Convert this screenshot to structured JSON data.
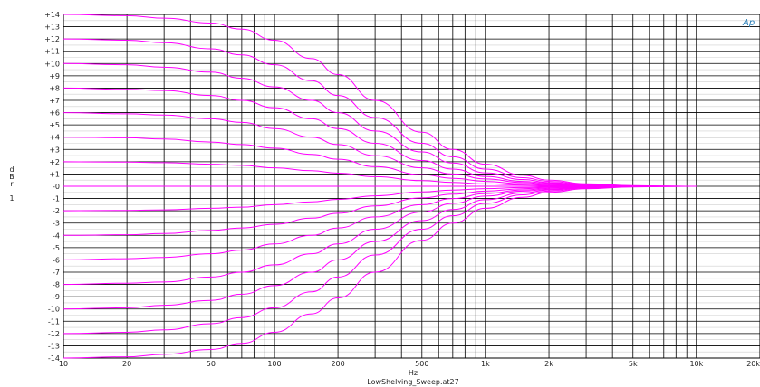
{
  "chart_data": {
    "type": "line",
    "title": "",
    "logo": "Ap",
    "xlabel": "Hz",
    "ylabel": "d\nB\nr\n\n1",
    "filename": "LowShelving_Sweep.at27",
    "x_scale": "log",
    "xlim": [
      10,
      20000
    ],
    "ylim": [
      -14,
      14
    ],
    "grid": true,
    "x_tick_labels": [
      {
        "x": 10,
        "label": "10"
      },
      {
        "x": 20,
        "label": "20"
      },
      {
        "x": 50,
        "label": "50"
      },
      {
        "x": 100,
        "label": "100"
      },
      {
        "x": 200,
        "label": "200"
      },
      {
        "x": 500,
        "label": "500"
      },
      {
        "x": 1000,
        "label": "1k"
      },
      {
        "x": 2000,
        "label": "2k"
      },
      {
        "x": 5000,
        "label": "5k"
      },
      {
        "x": 10000,
        "label": "10k"
      },
      {
        "x": 20000,
        "label": "20k"
      }
    ],
    "y_tick_labels": [
      {
        "y": 14,
        "label": "+14"
      },
      {
        "y": 13,
        "label": "+13"
      },
      {
        "y": 12,
        "label": "+12"
      },
      {
        "y": 11,
        "label": "+11"
      },
      {
        "y": 10,
        "label": "+10"
      },
      {
        "y": 9,
        "label": "+9"
      },
      {
        "y": 8,
        "label": "+8"
      },
      {
        "y": 7,
        "label": "+7"
      },
      {
        "y": 6,
        "label": "+6"
      },
      {
        "y": 5,
        "label": "+5"
      },
      {
        "y": 4,
        "label": "+4"
      },
      {
        "y": 3,
        "label": "+3"
      },
      {
        "y": 2,
        "label": "+2"
      },
      {
        "y": 1,
        "label": "+1"
      },
      {
        "y": 0,
        "label": "-0"
      },
      {
        "y": -1,
        "label": "-1"
      },
      {
        "y": -2,
        "label": "-2"
      },
      {
        "y": -3,
        "label": "-3"
      },
      {
        "y": -4,
        "label": "-4"
      },
      {
        "y": -5,
        "label": "-5"
      },
      {
        "y": -6,
        "label": "-6"
      },
      {
        "y": -7,
        "label": "-7"
      },
      {
        "y": -8,
        "label": "-8"
      },
      {
        "y": -9,
        "label": "-9"
      },
      {
        "y": -10,
        "label": "-10"
      },
      {
        "y": -11,
        "label": "-11"
      },
      {
        "y": -12,
        "label": "-12"
      },
      {
        "y": -13,
        "label": "-13"
      },
      {
        "y": -14,
        "label": "-14"
      }
    ],
    "series_color": "#ff00ff",
    "x": [
      10,
      20,
      30,
      50,
      70,
      100,
      150,
      200,
      300,
      500,
      700,
      1000,
      1500,
      2000,
      3000,
      5000,
      7000,
      10000
    ],
    "series": [
      {
        "values": [
          14,
          13.9,
          13.7,
          13.3,
          12.8,
          11.9,
          10.4,
          9.1,
          7.0,
          4.4,
          3.0,
          1.8,
          0.9,
          0.5,
          0.2,
          0.05,
          0.02,
          0
        ]
      },
      {
        "values": [
          12,
          11.9,
          11.7,
          11.2,
          10.7,
          9.9,
          8.6,
          7.4,
          5.6,
          3.5,
          2.4,
          1.4,
          0.7,
          0.4,
          0.15,
          0.04,
          0.01,
          0
        ]
      },
      {
        "values": [
          10,
          9.9,
          9.7,
          9.3,
          8.8,
          8.1,
          7.0,
          6.0,
          4.5,
          2.8,
          1.9,
          1.1,
          0.55,
          0.3,
          0.12,
          0.03,
          0.01,
          0
        ]
      },
      {
        "values": [
          8,
          7.9,
          7.8,
          7.4,
          7.0,
          6.4,
          5.5,
          4.7,
          3.5,
          2.1,
          1.4,
          0.8,
          0.4,
          0.25,
          0.1,
          0.02,
          0.01,
          0
        ]
      },
      {
        "values": [
          6,
          5.9,
          5.8,
          5.5,
          5.2,
          4.7,
          4.0,
          3.4,
          2.5,
          1.5,
          1.0,
          0.6,
          0.3,
          0.18,
          0.07,
          0.02,
          0,
          0
        ]
      },
      {
        "values": [
          4,
          3.95,
          3.85,
          3.6,
          3.4,
          3.1,
          2.6,
          2.2,
          1.6,
          0.95,
          0.65,
          0.4,
          0.2,
          0.12,
          0.05,
          0.01,
          0,
          0
        ]
      },
      {
        "values": [
          2,
          1.97,
          1.92,
          1.8,
          1.7,
          1.5,
          1.27,
          1.07,
          0.78,
          0.46,
          0.31,
          0.19,
          0.1,
          0.06,
          0.02,
          0.01,
          0,
          0
        ]
      },
      {
        "values": [
          0,
          0,
          0,
          0,
          0,
          0,
          0,
          0,
          0,
          0,
          0,
          0,
          0,
          0,
          0,
          0,
          0,
          0
        ]
      },
      {
        "values": [
          -2,
          -1.97,
          -1.92,
          -1.8,
          -1.7,
          -1.5,
          -1.27,
          -1.07,
          -0.78,
          -0.46,
          -0.31,
          -0.19,
          -0.1,
          -0.06,
          -0.02,
          -0.01,
          0,
          0
        ]
      },
      {
        "values": [
          -4,
          -3.95,
          -3.85,
          -3.6,
          -3.4,
          -3.1,
          -2.6,
          -2.2,
          -1.6,
          -0.95,
          -0.65,
          -0.4,
          -0.2,
          -0.12,
          -0.05,
          -0.01,
          0,
          0
        ]
      },
      {
        "values": [
          -6,
          -5.9,
          -5.8,
          -5.5,
          -5.2,
          -4.7,
          -4.0,
          -3.4,
          -2.5,
          -1.5,
          -1.0,
          -0.6,
          -0.3,
          -0.18,
          -0.07,
          -0.02,
          0,
          0
        ]
      },
      {
        "values": [
          -8,
          -7.9,
          -7.8,
          -7.4,
          -7.0,
          -6.4,
          -5.5,
          -4.7,
          -3.5,
          -2.1,
          -1.4,
          -0.8,
          -0.4,
          -0.25,
          -0.1,
          -0.02,
          -0.01,
          0
        ]
      },
      {
        "values": [
          -10,
          -9.9,
          -9.7,
          -9.3,
          -8.8,
          -8.1,
          -7.0,
          -6.0,
          -4.5,
          -2.8,
          -1.9,
          -1.1,
          -0.55,
          -0.3,
          -0.12,
          -0.03,
          -0.01,
          0
        ]
      },
      {
        "values": [
          -12,
          -11.9,
          -11.7,
          -11.2,
          -10.7,
          -9.9,
          -8.6,
          -7.4,
          -5.6,
          -3.5,
          -2.4,
          -1.4,
          -0.7,
          -0.4,
          -0.15,
          -0.04,
          -0.01,
          0
        ]
      },
      {
        "values": [
          -14,
          -13.9,
          -13.7,
          -13.3,
          -12.8,
          -11.9,
          -10.4,
          -9.1,
          -7.0,
          -4.4,
          -3.0,
          -1.8,
          -0.9,
          -0.5,
          -0.2,
          -0.05,
          -0.02,
          0
        ]
      }
    ]
  }
}
